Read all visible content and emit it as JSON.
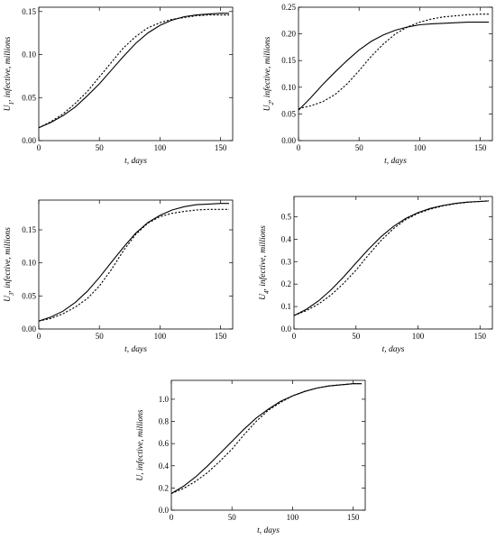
{
  "chart_data": [
    {
      "type": "line",
      "xlabel": "t, days",
      "ylabel": "U1, infective, millions",
      "ylabel_main": "U",
      "ylabel_sub": "1",
      "ylabel_rest": ", infective, millions",
      "xlim": [
        0,
        160
      ],
      "ylim": [
        0,
        0.155
      ],
      "xticks": [
        0,
        50,
        100,
        150
      ],
      "yticks": [
        0.0,
        0.05,
        0.1,
        0.15
      ],
      "ytick_labels": [
        "0.00",
        "0.05",
        "0.10",
        "0.15"
      ],
      "series": [
        {
          "style": "solid",
          "x": [
            0,
            10,
            20,
            30,
            40,
            50,
            60,
            70,
            80,
            90,
            100,
            110,
            120,
            130,
            140,
            150,
            157
          ],
          "y": [
            0.015,
            0.021,
            0.029,
            0.039,
            0.052,
            0.066,
            0.082,
            0.098,
            0.113,
            0.125,
            0.134,
            0.14,
            0.144,
            0.146,
            0.147,
            0.148,
            0.148
          ]
        },
        {
          "style": "dotted",
          "x": [
            0,
            10,
            20,
            30,
            40,
            50,
            60,
            70,
            80,
            90,
            100,
            110,
            120,
            130,
            140,
            150,
            157
          ],
          "y": [
            0.015,
            0.022,
            0.031,
            0.043,
            0.057,
            0.074,
            0.091,
            0.108,
            0.121,
            0.131,
            0.137,
            0.141,
            0.143,
            0.145,
            0.146,
            0.146,
            0.146
          ]
        }
      ]
    },
    {
      "type": "line",
      "xlabel": "t, days",
      "ylabel": "U2, infective, millions",
      "ylabel_main": "U",
      "ylabel_sub": "2",
      "ylabel_rest": ", infective, millions",
      "xlim": [
        0,
        160
      ],
      "ylim": [
        0,
        0.25
      ],
      "xticks": [
        0,
        50,
        100,
        150
      ],
      "yticks": [
        0.0,
        0.05,
        0.1,
        0.15,
        0.2,
        0.25
      ],
      "ytick_labels": [
        "0.00",
        "0.05",
        "0.10",
        "0.15",
        "0.20",
        "0.25"
      ],
      "series": [
        {
          "style": "solid",
          "x": [
            0,
            10,
            20,
            30,
            40,
            50,
            60,
            70,
            80,
            90,
            100,
            110,
            120,
            130,
            140,
            150,
            157
          ],
          "y": [
            0.057,
            0.08,
            0.105,
            0.128,
            0.15,
            0.17,
            0.186,
            0.198,
            0.207,
            0.213,
            0.217,
            0.219,
            0.22,
            0.221,
            0.222,
            0.222,
            0.222
          ]
        },
        {
          "style": "dotted",
          "x": [
            0,
            10,
            20,
            30,
            40,
            50,
            60,
            70,
            80,
            90,
            100,
            110,
            120,
            130,
            140,
            150,
            157
          ],
          "y": [
            0.06,
            0.065,
            0.073,
            0.086,
            0.106,
            0.131,
            0.158,
            0.181,
            0.2,
            0.213,
            0.222,
            0.228,
            0.232,
            0.234,
            0.236,
            0.237,
            0.237
          ]
        }
      ]
    },
    {
      "type": "line",
      "xlabel": "t, days",
      "ylabel": "U3, infective, millions",
      "ylabel_main": "U",
      "ylabel_sub": "3",
      "ylabel_rest": ", infective, millions",
      "xlim": [
        0,
        160
      ],
      "ylim": [
        0,
        0.195
      ],
      "xticks": [
        0,
        50,
        100,
        150
      ],
      "yticks": [
        0.0,
        0.05,
        0.1,
        0.15
      ],
      "ytick_labels": [
        "0.00",
        "0.05",
        "0.10",
        "0.15"
      ],
      "series": [
        {
          "style": "solid",
          "x": [
            0,
            10,
            20,
            30,
            40,
            50,
            60,
            70,
            80,
            90,
            100,
            110,
            120,
            130,
            140,
            150,
            157
          ],
          "y": [
            0.012,
            0.018,
            0.027,
            0.04,
            0.057,
            0.078,
            0.101,
            0.124,
            0.145,
            0.161,
            0.172,
            0.18,
            0.185,
            0.188,
            0.189,
            0.19,
            0.19
          ]
        },
        {
          "style": "dotted",
          "x": [
            0,
            10,
            20,
            30,
            40,
            50,
            60,
            70,
            80,
            90,
            100,
            110,
            120,
            130,
            140,
            150,
            157
          ],
          "y": [
            0.012,
            0.016,
            0.023,
            0.033,
            0.046,
            0.065,
            0.09,
            0.119,
            0.143,
            0.16,
            0.17,
            0.175,
            0.178,
            0.18,
            0.181,
            0.181,
            0.181
          ]
        }
      ]
    },
    {
      "type": "line",
      "xlabel": "t, days",
      "ylabel": "U4, infective, millions",
      "ylabel_main": "U",
      "ylabel_sub": "4",
      "ylabel_rest": ", infective, millions",
      "xlim": [
        0,
        160
      ],
      "ylim": [
        0,
        0.59
      ],
      "xticks": [
        0,
        50,
        100,
        150
      ],
      "yticks": [
        0.0,
        0.1,
        0.2,
        0.3,
        0.4,
        0.5
      ],
      "ytick_labels": [
        "0.0",
        "0.1",
        "0.2",
        "0.3",
        "0.4",
        "0.5"
      ],
      "series": [
        {
          "style": "solid",
          "x": [
            0,
            10,
            20,
            30,
            40,
            50,
            60,
            70,
            80,
            90,
            100,
            110,
            120,
            130,
            140,
            150,
            157
          ],
          "y": [
            0.06,
            0.088,
            0.126,
            0.175,
            0.232,
            0.294,
            0.355,
            0.41,
            0.456,
            0.492,
            0.518,
            0.537,
            0.55,
            0.559,
            0.565,
            0.568,
            0.57
          ]
        },
        {
          "style": "dotted",
          "x": [
            0,
            10,
            20,
            30,
            40,
            50,
            60,
            70,
            80,
            90,
            100,
            110,
            120,
            130,
            140,
            150,
            157
          ],
          "y": [
            0.06,
            0.082,
            0.112,
            0.152,
            0.203,
            0.262,
            0.329,
            0.393,
            0.446,
            0.487,
            0.515,
            0.534,
            0.548,
            0.558,
            0.564,
            0.568,
            0.571
          ]
        }
      ]
    },
    {
      "type": "line",
      "xlabel": "t, days",
      "ylabel": "U, infective, millions",
      "ylabel_main": "U",
      "ylabel_sub": "",
      "ylabel_rest": ", infective, millions",
      "xlim": [
        0,
        160
      ],
      "ylim": [
        0,
        1.17
      ],
      "xticks": [
        0,
        50,
        100,
        150
      ],
      "yticks": [
        0.0,
        0.2,
        0.4,
        0.6,
        0.8,
        1.0
      ],
      "ytick_labels": [
        "0.0",
        "0.2",
        "0.4",
        "0.6",
        "0.8",
        "1.0"
      ],
      "series": [
        {
          "style": "solid",
          "x": [
            0,
            10,
            20,
            30,
            40,
            50,
            60,
            70,
            80,
            90,
            100,
            110,
            120,
            130,
            140,
            150,
            157
          ],
          "y": [
            0.15,
            0.215,
            0.3,
            0.4,
            0.51,
            0.62,
            0.73,
            0.83,
            0.91,
            0.98,
            1.03,
            1.07,
            1.1,
            1.12,
            1.13,
            1.14,
            1.14
          ]
        },
        {
          "style": "dotted",
          "x": [
            0,
            10,
            20,
            30,
            40,
            50,
            60,
            70,
            80,
            90,
            100,
            110,
            120,
            130,
            140,
            150,
            157
          ],
          "y": [
            0.15,
            0.195,
            0.26,
            0.34,
            0.44,
            0.55,
            0.68,
            0.8,
            0.9,
            0.97,
            1.03,
            1.07,
            1.1,
            1.12,
            1.13,
            1.14,
            1.14
          ]
        }
      ]
    }
  ]
}
